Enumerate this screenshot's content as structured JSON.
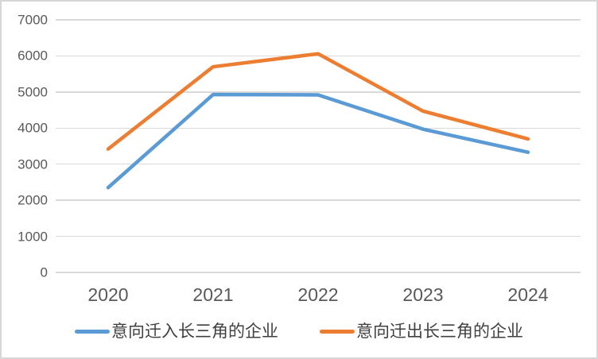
{
  "chart_data": {
    "type": "line",
    "categories": [
      "2020",
      "2021",
      "2022",
      "2023",
      "2024"
    ],
    "series": [
      {
        "name": "意向迁入长三角的企业",
        "color": "#5B9BD5",
        "values": [
          2350,
          4930,
          4920,
          3970,
          3330
        ]
      },
      {
        "name": "意向迁出长三角的企业",
        "color": "#ED7D31",
        "values": [
          3420,
          5700,
          6060,
          4470,
          3700
        ]
      }
    ],
    "ylim": [
      0,
      7000
    ],
    "yticks": [
      0,
      1000,
      2000,
      3000,
      4000,
      5000,
      6000,
      7000
    ],
    "grid": true,
    "legend_position": "bottom"
  },
  "colors": {
    "gridline": "#d9d9d9",
    "axis_label": "#595959",
    "legend_text": "#404040",
    "background": "#ffffff",
    "border": "#d6d6d6"
  }
}
